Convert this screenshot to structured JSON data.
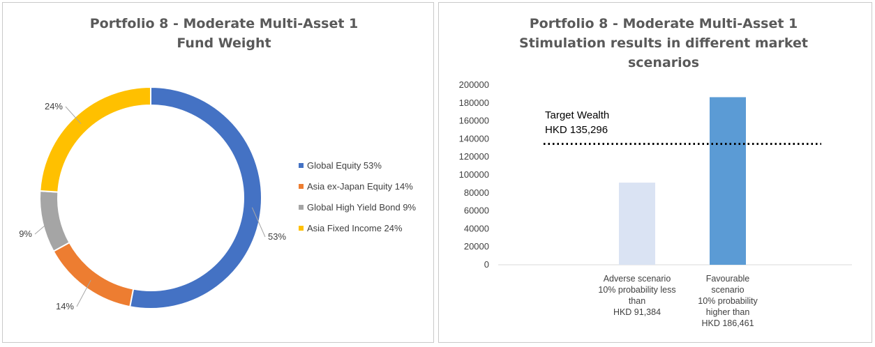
{
  "chart_data": [
    {
      "type": "pie",
      "variant": "donut",
      "title_lines": [
        "Portfolio 8 - Moderate Multi-Asset 1",
        "Fund Weight"
      ],
      "slices": [
        {
          "name": "Global Equity",
          "legend": "Global Equity 53%",
          "value": 53,
          "label": "53%",
          "color": "#4472c4"
        },
        {
          "name": "Asia ex-Japan Equity",
          "legend": "Asia ex-Japan Equity 14%",
          "value": 14,
          "label": "14%",
          "color": "#ed7d31"
        },
        {
          "name": "Global High Yield Bond",
          "legend": "Global High Yield Bond 9%",
          "value": 9,
          "label": "9%",
          "color": "#a5a5a5"
        },
        {
          "name": "Asia Fixed Income",
          "legend": "Asia Fixed Income 24%",
          "value": 24,
          "label": "24%",
          "color": "#ffc000"
        }
      ],
      "legend_position": "right"
    },
    {
      "type": "bar",
      "title_lines": [
        "Portfolio 8 - Moderate Multi-Asset 1",
        "Stimulation results in different market",
        "scenarios"
      ],
      "categories": [
        [
          "Adverse scenario",
          "10% probability less",
          "than",
          "HKD 91,384"
        ],
        [
          "Favourable",
          "scenario",
          "10% probability",
          "higher than",
          "HKD 186,461"
        ]
      ],
      "values": [
        91384,
        186461
      ],
      "colors": [
        "#dae3f3",
        "#5b9bd5"
      ],
      "ylim": [
        0,
        200000
      ],
      "yticks": [
        "0",
        "20000",
        "40000",
        "60000",
        "80000",
        "100000",
        "120000",
        "140000",
        "160000",
        "180000",
        "200000"
      ],
      "grid": false,
      "target_line": {
        "value": 135296,
        "label_lines": [
          "Target Wealth",
          "HKD 135,296"
        ]
      }
    }
  ]
}
